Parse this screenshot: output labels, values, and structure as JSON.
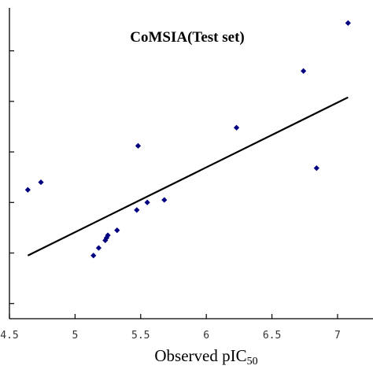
{
  "chart_data": {
    "type": "scatter",
    "title": "CoMSIA(Test set)",
    "xlabel_main": "Observed pIC",
    "xlabel_sub": "50",
    "ylabel": "",
    "xlim": [
      4.5,
      7.27
    ],
    "ylim": [
      3.2,
      9.35
    ],
    "x_ticks": [
      4.5,
      5,
      5.5,
      6,
      6.5,
      7
    ],
    "x_tick_labels": [
      "4.5",
      "5",
      "5.5",
      "6",
      "6.5",
      "7"
    ],
    "y_ticks": [
      3.5,
      4.5,
      5.5,
      6.5,
      7.5,
      8.5
    ],
    "points": [
      {
        "x": 4.64,
        "y": 5.75
      },
      {
        "x": 4.74,
        "y": 5.9
      },
      {
        "x": 5.14,
        "y": 4.45
      },
      {
        "x": 5.18,
        "y": 4.6
      },
      {
        "x": 5.23,
        "y": 4.75
      },
      {
        "x": 5.24,
        "y": 4.8
      },
      {
        "x": 5.25,
        "y": 4.85
      },
      {
        "x": 5.32,
        "y": 4.95
      },
      {
        "x": 5.47,
        "y": 5.35
      },
      {
        "x": 5.48,
        "y": 6.62
      },
      {
        "x": 5.55,
        "y": 5.5
      },
      {
        "x": 5.68,
        "y": 5.55
      },
      {
        "x": 6.23,
        "y": 6.98
      },
      {
        "x": 6.74,
        "y": 8.1
      },
      {
        "x": 6.84,
        "y": 6.18
      },
      {
        "x": 7.08,
        "y": 9.05
      }
    ],
    "trendline": {
      "x1": 4.64,
      "y1": 4.45,
      "x2": 7.08,
      "y2": 7.58
    },
    "point_color": "#000080",
    "grid": false,
    "legend": "none"
  }
}
